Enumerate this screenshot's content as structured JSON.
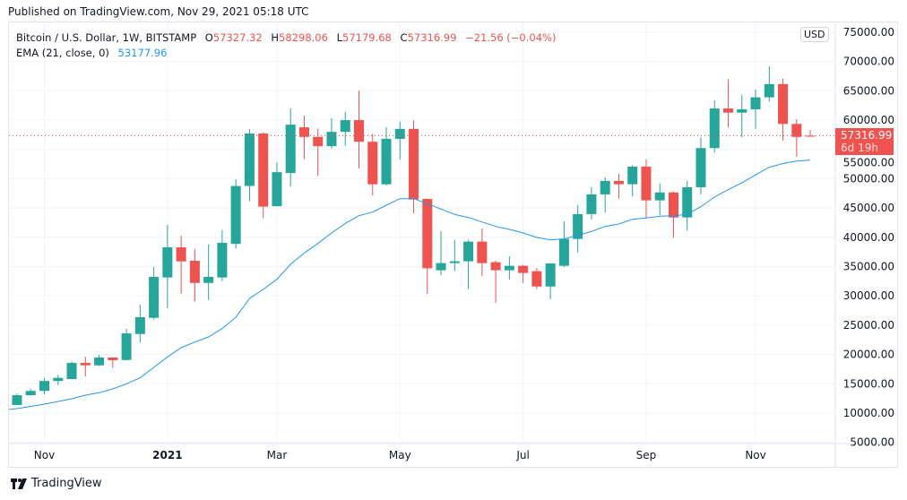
{
  "published": "Published on TradingView.com, Nov 29, 2021 05:18 UTC",
  "legend": {
    "symbol": "Bitcoin / U.S. Dollar, 1W, BITSTAMP",
    "o_label": "O",
    "o": "57327.32",
    "h_label": "H",
    "h": "58298.06",
    "l_label": "L",
    "l": "57179.68",
    "c_label": "C",
    "c": "57316.99",
    "change": "−21.56 (−0.04%)",
    "ema_label": "EMA (21, close, 0)",
    "ema_value": "53177.96"
  },
  "currency": "USD",
  "price_label": {
    "value": "57316.99",
    "countdown": "6d 19h"
  },
  "brand": "TradingView",
  "colors": {
    "up": "#26a69a",
    "down": "#ef5350",
    "ema": "#2196f3",
    "grid": "#f0f3fa",
    "last_price": "#ef5350"
  },
  "chart_data": {
    "type": "candlestick",
    "interval": "1W",
    "first_week": "2020-10-19",
    "ylim": [
      5000,
      75000
    ],
    "grid": true,
    "y_ticks": [
      "75000.00",
      "70000.00",
      "65000.00",
      "60000.00",
      "55000.00",
      "50000.00",
      "45000.00",
      "40000.00",
      "35000.00",
      "30000.00",
      "25000.00",
      "20000.00",
      "15000.00",
      "10000.00",
      "5000.00"
    ],
    "x_ticks": [
      {
        "label": "Nov",
        "week_index": 2
      },
      {
        "label": "2021",
        "week_index": 11
      },
      {
        "label": "Mar",
        "week_index": 19
      },
      {
        "label": "May",
        "week_index": 28
      },
      {
        "label": "Jul",
        "week_index": 37
      },
      {
        "label": "Sep",
        "week_index": 46
      },
      {
        "label": "Nov",
        "week_index": 54
      }
    ],
    "ohlc": [
      [
        11380,
        13350,
        11400,
        13050
      ],
      [
        13050,
        14100,
        12960,
        13780
      ],
      [
        13780,
        15970,
        13200,
        15480
      ],
      [
        15480,
        16480,
        14800,
        16010
      ],
      [
        15810,
        18800,
        15750,
        18560
      ],
      [
        18560,
        19630,
        16270,
        18150
      ],
      [
        18150,
        19940,
        18000,
        19480
      ],
      [
        19480,
        19500,
        17690,
        19020
      ],
      [
        19060,
        24370,
        19000,
        23600
      ],
      [
        23500,
        28500,
        21990,
        26360
      ],
      [
        26260,
        34920,
        25950,
        33240
      ],
      [
        33140,
        42110,
        27930,
        38290
      ],
      [
        38290,
        40270,
        30380,
        35890
      ],
      [
        35990,
        37980,
        29000,
        32210
      ],
      [
        32210,
        38750,
        29300,
        33240
      ],
      [
        33140,
        41190,
        32520,
        39050
      ],
      [
        38870,
        49900,
        38100,
        48750
      ],
      [
        48760,
        58470,
        46140,
        57710
      ],
      [
        57710,
        57900,
        43270,
        45230
      ],
      [
        45300,
        52790,
        45230,
        51110
      ],
      [
        50970,
        61980,
        48600,
        59220
      ],
      [
        58760,
        60760,
        53360,
        57130
      ],
      [
        57130,
        58570,
        50450,
        55550
      ],
      [
        55550,
        60300,
        55140,
        57990
      ],
      [
        57990,
        61380,
        55620,
        59990
      ],
      [
        59990,
        65050,
        51730,
        56300
      ],
      [
        56300,
        57690,
        47130,
        49040
      ],
      [
        49040,
        58790,
        48840,
        56800
      ],
      [
        56800,
        59770,
        53240,
        58500
      ],
      [
        58500,
        59920,
        44080,
        46450
      ],
      [
        46540,
        46600,
        30290,
        34710
      ],
      [
        34370,
        41040,
        33550,
        35590
      ],
      [
        35590,
        39560,
        34210,
        35900
      ],
      [
        35900,
        39560,
        31150,
        39260
      ],
      [
        39260,
        41500,
        33400,
        35590
      ],
      [
        35750,
        36000,
        28830,
        34370
      ],
      [
        34370,
        36760,
        32790,
        35130
      ],
      [
        35130,
        35300,
        32180,
        33910
      ],
      [
        34210,
        34770,
        31150,
        31600
      ],
      [
        31600,
        35600,
        29420,
        35530
      ],
      [
        35130,
        42720,
        34900,
        39720
      ],
      [
        39720,
        45470,
        37440,
        43940
      ],
      [
        43960,
        48540,
        43050,
        47320
      ],
      [
        47320,
        50230,
        44190,
        49620
      ],
      [
        49620,
        50860,
        46580,
        49050
      ],
      [
        49050,
        52290,
        46970,
        52060
      ],
      [
        52060,
        53310,
        43290,
        46300
      ],
      [
        46300,
        49200,
        43800,
        47650
      ],
      [
        47650,
        47800,
        39900,
        43380
      ],
      [
        43380,
        49620,
        41140,
        48540
      ],
      [
        48540,
        57060,
        47320,
        55220
      ],
      [
        55220,
        63360,
        54450,
        61980
      ],
      [
        61980,
        66940,
        58740,
        61270
      ],
      [
        61270,
        64280,
        57060,
        61830
      ],
      [
        61830,
        65190,
        58530,
        63880
      ],
      [
        63880,
        69170,
        63140,
        66140
      ],
      [
        66140,
        67110,
        56500,
        59340
      ],
      [
        59340,
        60150,
        53750,
        57130
      ],
      [
        57327.32,
        58298.06,
        57179.68,
        57316.99
      ]
    ],
    "ema21": [
      10760,
      11150,
      11530,
      11990,
      12450,
      13060,
      13470,
      14130,
      15000,
      16010,
      17800,
      19580,
      21160,
      22120,
      23000,
      24420,
      26360,
      29570,
      31100,
      32830,
      35380,
      37330,
      38950,
      40740,
      42370,
      43690,
      44300,
      45470,
      46590,
      46590,
      45730,
      44810,
      43900,
      43380,
      42620,
      41850,
      41350,
      40740,
      39970,
      39570,
      39720,
      40330,
      41000,
      41850,
      42260,
      43070,
      43280,
      43590,
      43690,
      43900,
      45230,
      46870,
      48130,
      49310,
      50640,
      51960,
      52580,
      52990,
      53177.96
    ],
    "last_price": 57316.99
  }
}
